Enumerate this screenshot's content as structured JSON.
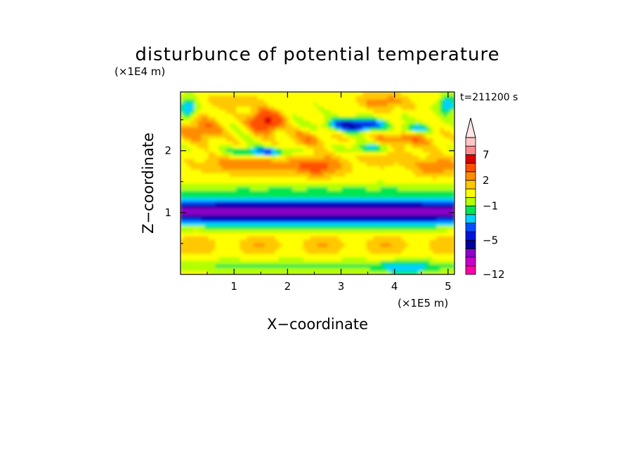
{
  "chart_data": {
    "type": "heatmap",
    "title": "disturbunce of potential temperature",
    "time_label": "t=211200 s",
    "xlabel": "X−coordinate",
    "ylabel": "Z−coordinate",
    "x_unit": "(×1E5 m)",
    "y_unit": "(×1E4 m)",
    "xlim": [
      0,
      5.12
    ],
    "ylim": [
      0,
      2.95
    ],
    "x_ticks": [
      1,
      2,
      3,
      4,
      5
    ],
    "x_tick_labels": [
      "1",
      "2",
      "3",
      "4",
      "5"
    ],
    "y_ticks": [
      1,
      2
    ],
    "y_tick_labels": [
      "1",
      "2"
    ],
    "colorbar": {
      "levels": [
        -12,
        -10,
        -8,
        -6,
        -5,
        -4,
        -3,
        -2,
        -1,
        0,
        1,
        2,
        3,
        5,
        7,
        9,
        11
      ],
      "tick_labels": [
        "7",
        "2",
        "−1",
        "−5",
        "−12"
      ],
      "tick_values": [
        7,
        2,
        -1,
        -5,
        -12
      ],
      "colors": [
        "#ff00a8",
        "#c800c8",
        "#8c00c8",
        "#0000a0",
        "#0014dc",
        "#0050ff",
        "#00d2ff",
        "#00e650",
        "#b4ff00",
        "#ffff00",
        "#ffc800",
        "#ff8c00",
        "#ff5000",
        "#dc0000",
        "#ff8c8c",
        "#ffc8c8"
      ],
      "extend": "max"
    },
    "field_description_rows": [
      {
        "z_range": [
          2.6,
          2.95
        ],
        "dominant": "mixed orange/yellow/green with blue near left edge"
      },
      {
        "z_range": [
          2.2,
          2.6
        ],
        "dominant": "orange-red maximum near x=1.6, blue minimum near x=3.3"
      },
      {
        "z_range": [
          1.7,
          2.2
        ],
        "dominant": "orange/yellow with blue band near x=1.5"
      },
      {
        "z_range": [
          1.2,
          1.7
        ],
        "dominant": "yellow/green to cyan"
      },
      {
        "z_range": [
          0.75,
          1.2
        ],
        "dominant": "blue minimum band across full width"
      },
      {
        "z_range": [
          0.3,
          0.75
        ],
        "dominant": "green/yellow"
      },
      {
        "z_range": [
          0.0,
          0.3
        ],
        "dominant": "green/cyan"
      }
    ]
  }
}
